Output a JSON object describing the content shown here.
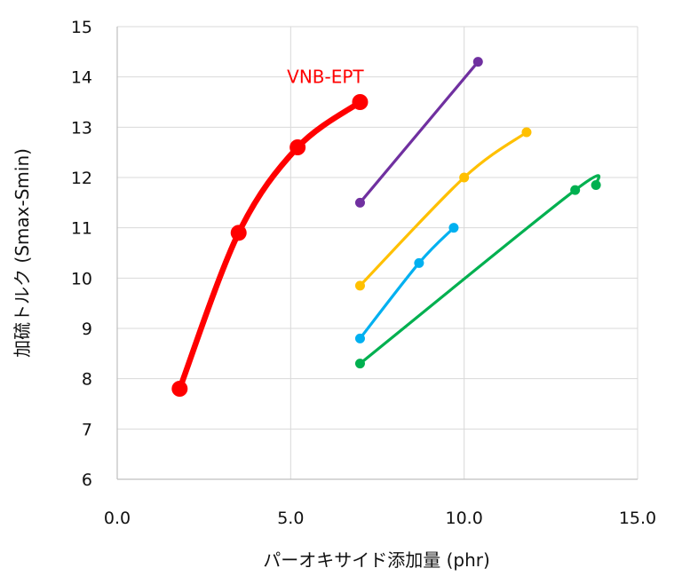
{
  "chart_data": {
    "type": "scatter",
    "xlabel": "パーオキサイド添加量 (phr)",
    "ylabel": "加硫トルク (Smax-Smin)",
    "xlim": [
      0,
      15
    ],
    "ylim": [
      6,
      15
    ],
    "x_ticks": [
      "0.0",
      "5.0",
      "10.0",
      "15.0"
    ],
    "y_ticks": [
      "6",
      "7",
      "8",
      "9",
      "10",
      "11",
      "12",
      "13",
      "14",
      "15"
    ],
    "grid": true,
    "series": [
      {
        "color": "#ff0000",
        "points": [
          [
            1.8,
            7.8
          ],
          [
            3.5,
            10.9
          ],
          [
            5.2,
            12.6
          ],
          [
            7.0,
            13.5
          ]
        ]
      },
      {
        "color": "#7030a0",
        "points": [
          [
            7.0,
            11.5
          ],
          [
            10.4,
            14.3
          ]
        ]
      },
      {
        "color": "#ffc000",
        "points": [
          [
            7.0,
            9.85
          ],
          [
            10.0,
            12.0
          ],
          [
            11.8,
            12.9
          ]
        ]
      },
      {
        "color": "#00b0f0",
        "points": [
          [
            7.0,
            8.8
          ],
          [
            8.7,
            10.3
          ],
          [
            9.7,
            11.0
          ]
        ]
      },
      {
        "color": "#00b050",
        "points": [
          [
            7.0,
            8.3
          ],
          [
            13.2,
            11.75
          ],
          [
            13.8,
            11.85
          ]
        ]
      }
    ],
    "annotations": [
      {
        "text": "VNB-EPT",
        "x": 6.0,
        "y": 14.0,
        "color": "#ff0000"
      }
    ]
  }
}
